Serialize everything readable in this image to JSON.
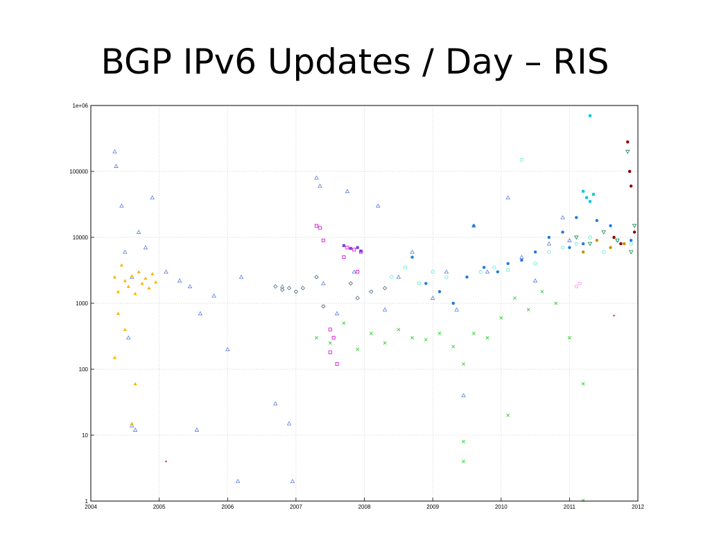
{
  "slide": {
    "title": "BGP IPv6 Updates / Day – RIS"
  },
  "chart_data": {
    "type": "scatter",
    "title": "",
    "xlabel": "",
    "ylabel": "",
    "log_y": true,
    "grid": true,
    "xlim": [
      2004,
      2012
    ],
    "ylim": [
      1,
      1000000
    ],
    "x_ticks": [
      "2004",
      "2005",
      "2006",
      "2007",
      "2008",
      "2009",
      "2010",
      "2011",
      "2012"
    ],
    "y_ticks": [
      "1",
      "10",
      "100",
      "1000",
      "10000",
      "100000",
      "1e+06"
    ],
    "series": [
      {
        "color": "#5b7fdc",
        "marker": "triangle-up",
        "points": [
          [
            2004.35,
            200000
          ],
          [
            2004.37,
            120000
          ],
          [
            2004.45,
            30000
          ],
          [
            2004.5,
            6000
          ],
          [
            2004.6,
            2500
          ],
          [
            2004.7,
            12000
          ],
          [
            2004.8,
            7000
          ],
          [
            2004.9,
            40000
          ],
          [
            2004.55,
            300
          ],
          [
            2004.6,
            14
          ],
          [
            2004.65,
            12
          ],
          [
            2005.1,
            3000
          ],
          [
            2005.3,
            2200
          ],
          [
            2005.45,
            1800
          ],
          [
            2005.6,
            700
          ],
          [
            2005.55,
            12
          ],
          [
            2005.8,
            1300
          ],
          [
            2006.0,
            200
          ],
          [
            2006.2,
            2500
          ],
          [
            2006.15,
            2
          ],
          [
            2006.7,
            30
          ],
          [
            2006.8,
            1800
          ],
          [
            2006.9,
            15
          ],
          [
            2006.95,
            2
          ],
          [
            2007.3,
            80000
          ],
          [
            2007.35,
            60000
          ],
          [
            2007.4,
            2000
          ],
          [
            2007.6,
            700
          ],
          [
            2007.75,
            50000
          ],
          [
            2007.85,
            3000
          ],
          [
            2008.2,
            30000
          ],
          [
            2008.3,
            800
          ],
          [
            2008.5,
            2500
          ],
          [
            2008.7,
            6000
          ],
          [
            2009.0,
            1200
          ],
          [
            2009.2,
            3000
          ],
          [
            2009.35,
            800
          ],
          [
            2009.45,
            40
          ],
          [
            2009.6,
            15000
          ],
          [
            2009.8,
            3000
          ],
          [
            2010.1,
            40000
          ],
          [
            2010.3,
            5000
          ],
          [
            2010.5,
            2200
          ],
          [
            2010.7,
            8000
          ],
          [
            2010.9,
            20000
          ],
          [
            2011.0,
            9000
          ]
        ]
      },
      {
        "color": "#f5b800",
        "marker": "triangle-up-filled",
        "points": [
          [
            2004.35,
            2500
          ],
          [
            2004.4,
            1500
          ],
          [
            2004.45,
            3800
          ],
          [
            2004.5,
            2200
          ],
          [
            2004.55,
            1800
          ],
          [
            2004.6,
            2600
          ],
          [
            2004.65,
            1400
          ],
          [
            2004.7,
            3000
          ],
          [
            2004.75,
            2000
          ],
          [
            2004.8,
            2400
          ],
          [
            2004.85,
            1700
          ],
          [
            2004.9,
            2800
          ],
          [
            2004.95,
            2100
          ],
          [
            2004.4,
            700
          ],
          [
            2004.5,
            400
          ],
          [
            2004.65,
            60
          ],
          [
            2004.6,
            15
          ],
          [
            2004.35,
            150
          ]
        ]
      },
      {
        "color": "#46647a",
        "marker": "diamond",
        "points": [
          [
            2006.7,
            1800
          ],
          [
            2006.8,
            1600
          ],
          [
            2006.9,
            1700
          ],
          [
            2007.0,
            1500
          ],
          [
            2007.1,
            1700
          ],
          [
            2007.3,
            2500
          ],
          [
            2007.4,
            900
          ],
          [
            2007.8,
            2000
          ],
          [
            2007.9,
            1200
          ],
          [
            2008.1,
            1500
          ],
          [
            2008.3,
            1700
          ]
        ]
      },
      {
        "color": "#cc00cc",
        "marker": "square",
        "points": [
          [
            2007.3,
            15000
          ],
          [
            2007.35,
            14000
          ],
          [
            2007.4,
            9000
          ],
          [
            2007.5,
            400
          ],
          [
            2007.5,
            180
          ],
          [
            2007.55,
            300
          ],
          [
            2007.6,
            120
          ],
          [
            2007.7,
            5000
          ],
          [
            2007.75,
            7000
          ],
          [
            2007.85,
            6500
          ],
          [
            2007.95,
            6000
          ],
          [
            2007.9,
            3000
          ]
        ]
      },
      {
        "color": "#7b3fe4",
        "marker": "square-filled",
        "points": [
          [
            2007.7,
            7500
          ],
          [
            2007.8,
            6800
          ],
          [
            2007.9,
            7000
          ],
          [
            2007.95,
            6200
          ]
        ]
      },
      {
        "color": "#33cc33",
        "marker": "cross",
        "points": [
          [
            2007.3,
            300
          ],
          [
            2007.5,
            250
          ],
          [
            2007.7,
            500
          ],
          [
            2007.9,
            200
          ],
          [
            2008.1,
            350
          ],
          [
            2008.3,
            250
          ],
          [
            2008.5,
            400
          ],
          [
            2008.7,
            300
          ],
          [
            2008.9,
            280
          ],
          [
            2009.1,
            350
          ],
          [
            2009.3,
            220
          ],
          [
            2009.45,
            120
          ],
          [
            2009.45,
            8
          ],
          [
            2009.45,
            4
          ],
          [
            2009.6,
            350
          ],
          [
            2009.8,
            300
          ],
          [
            2010.0,
            600
          ],
          [
            2010.1,
            20
          ],
          [
            2010.2,
            1200
          ],
          [
            2010.4,
            800
          ],
          [
            2010.6,
            1500
          ],
          [
            2010.8,
            1000
          ],
          [
            2011.0,
            300
          ],
          [
            2011.2,
            60
          ],
          [
            2011.2,
            1
          ]
        ]
      },
      {
        "color": "#1e7be0",
        "marker": "circle-filled",
        "points": [
          [
            2008.7,
            5000
          ],
          [
            2008.9,
            2000
          ],
          [
            2009.1,
            1500
          ],
          [
            2009.3,
            1000
          ],
          [
            2009.5,
            2500
          ],
          [
            2009.6,
            15000
          ],
          [
            2009.75,
            3500
          ],
          [
            2009.95,
            3000
          ],
          [
            2010.1,
            4000
          ],
          [
            2010.3,
            4500
          ],
          [
            2010.5,
            6000
          ],
          [
            2010.7,
            10000
          ],
          [
            2010.9,
            12000
          ],
          [
            2011.0,
            7000
          ],
          [
            2011.1,
            20000
          ],
          [
            2011.2,
            8000
          ],
          [
            2011.4,
            18000
          ],
          [
            2011.6,
            15000
          ],
          [
            2011.9,
            9000
          ]
        ]
      },
      {
        "color": "#55e6c8",
        "marker": "circle",
        "points": [
          [
            2008.4,
            2500
          ],
          [
            2008.6,
            3500
          ],
          [
            2008.8,
            2000
          ],
          [
            2009.0,
            3000
          ],
          [
            2009.2,
            2500
          ],
          [
            2009.7,
            3000
          ],
          [
            2009.9,
            3500
          ],
          [
            2010.1,
            3200
          ],
          [
            2010.3,
            150000
          ],
          [
            2010.5,
            4000
          ],
          [
            2010.7,
            6000
          ],
          [
            2010.9,
            7000
          ],
          [
            2011.1,
            8000
          ],
          [
            2011.3,
            10000
          ],
          [
            2011.5,
            6000
          ],
          [
            2011.7,
            9000
          ],
          [
            2011.9,
            8000
          ]
        ]
      },
      {
        "color": "#18c8e0",
        "marker": "square-filled",
        "points": [
          [
            2011.2,
            50000
          ],
          [
            2011.25,
            40000
          ],
          [
            2011.3,
            35000
          ],
          [
            2011.35,
            45000
          ],
          [
            2011.3,
            700000
          ]
        ]
      },
      {
        "color": "#0f8a4a",
        "marker": "triangle-down",
        "points": [
          [
            2011.1,
            10000
          ],
          [
            2011.3,
            8000
          ],
          [
            2011.5,
            12000
          ],
          [
            2011.7,
            9000
          ],
          [
            2011.85,
            200000
          ],
          [
            2011.9,
            6000
          ],
          [
            2011.95,
            15000
          ]
        ]
      },
      {
        "color": "#c89000",
        "marker": "circle-filled",
        "points": [
          [
            2011.2,
            6000
          ],
          [
            2011.4,
            9000
          ],
          [
            2011.6,
            7000
          ],
          [
            2011.8,
            8000
          ]
        ]
      },
      {
        "color": "#8b0000",
        "marker": "circle-filled",
        "points": [
          [
            2011.65,
            10000
          ],
          [
            2011.75,
            8000
          ],
          [
            2011.85,
            280000
          ],
          [
            2011.88,
            100000
          ],
          [
            2011.9,
            60000
          ],
          [
            2011.95,
            12000
          ]
        ]
      },
      {
        "color": "#ff88ee",
        "marker": "circle",
        "points": [
          [
            2011.1,
            1800
          ],
          [
            2011.15,
            2000
          ]
        ]
      },
      {
        "color": "#ff3333",
        "marker": "dot",
        "points": [
          [
            2005.1,
            4
          ],
          [
            2011.65,
            650
          ]
        ]
      }
    ]
  }
}
